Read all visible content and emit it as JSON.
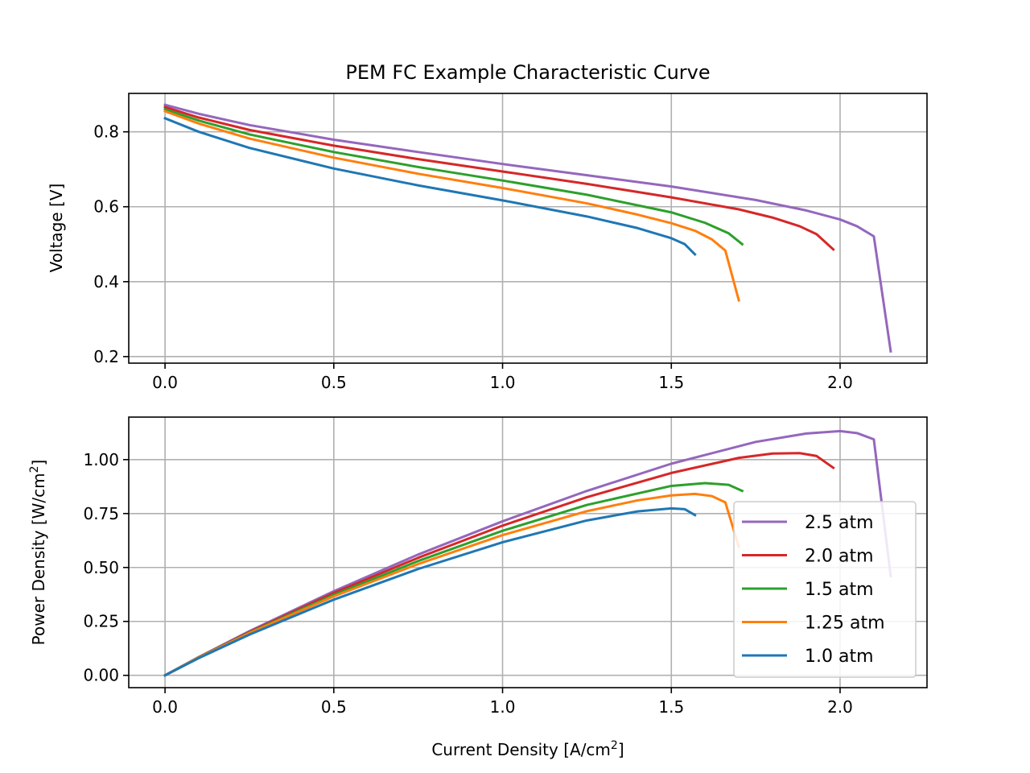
{
  "chart_data": [
    {
      "type": "line",
      "title": "PEM FC Example Characteristic Curve",
      "xlabel": "",
      "ylabel": "Voltage [V]",
      "xlim": [
        -0.1075,
        2.2575
      ],
      "ylim": [
        0.1825,
        0.9025
      ],
      "xticks": [
        0.0,
        0.5,
        1.0,
        1.5,
        2.0
      ],
      "xtick_labels": [
        "0.0",
        "0.5",
        "1.0",
        "1.5",
        "2.0"
      ],
      "yticks": [
        0.2,
        0.4,
        0.6,
        0.8
      ],
      "ytick_labels": [
        "0.2",
        "0.4",
        "0.6",
        "0.8"
      ],
      "grid": true,
      "series": [
        {
          "name": "2.5 atm",
          "color": "#9467bd",
          "x": [
            0.0,
            0.1,
            0.25,
            0.5,
            0.75,
            1.0,
            1.25,
            1.5,
            1.75,
            1.9,
            2.0,
            2.05,
            2.1,
            2.15
          ],
          "values": [
            0.872,
            0.848,
            0.818,
            0.779,
            0.746,
            0.714,
            0.684,
            0.654,
            0.618,
            0.59,
            0.566,
            0.548,
            0.521,
            0.214
          ]
        },
        {
          "name": "2.0 atm",
          "color": "#d62728",
          "x": [
            0.0,
            0.1,
            0.25,
            0.5,
            0.75,
            1.0,
            1.25,
            1.5,
            1.7,
            1.8,
            1.88,
            1.93,
            1.98
          ],
          "values": [
            0.866,
            0.838,
            0.805,
            0.763,
            0.727,
            0.694,
            0.661,
            0.625,
            0.593,
            0.571,
            0.548,
            0.527,
            0.486
          ]
        },
        {
          "name": "1.5 atm",
          "color": "#2ca02c",
          "x": [
            0.0,
            0.1,
            0.25,
            0.5,
            0.75,
            1.0,
            1.25,
            1.5,
            1.6,
            1.67,
            1.71
          ],
          "values": [
            0.86,
            0.83,
            0.793,
            0.746,
            0.706,
            0.67,
            0.632,
            0.585,
            0.557,
            0.529,
            0.5
          ]
        },
        {
          "name": "1.25 atm",
          "color": "#ff7f0e",
          "x": [
            0.0,
            0.1,
            0.25,
            0.5,
            0.75,
            1.0,
            1.25,
            1.4,
            1.5,
            1.57,
            1.62,
            1.66,
            1.7
          ],
          "values": [
            0.855,
            0.822,
            0.782,
            0.731,
            0.688,
            0.65,
            0.609,
            0.579,
            0.556,
            0.536,
            0.513,
            0.483,
            0.35
          ]
        },
        {
          "name": "1.0 atm",
          "color": "#1f77b4",
          "x": [
            0.0,
            0.1,
            0.25,
            0.5,
            0.75,
            1.0,
            1.25,
            1.4,
            1.5,
            1.54,
            1.57
          ],
          "values": [
            0.836,
            0.8,
            0.757,
            0.702,
            0.657,
            0.617,
            0.574,
            0.543,
            0.516,
            0.5,
            0.473
          ]
        }
      ]
    },
    {
      "type": "line",
      "title": "",
      "xlabel_main": "Current Density [A/cm",
      "xlabel_sup": "2",
      "xlabel_end": "]",
      "ylabel_main": "Power Density [W/cm",
      "ylabel_sup": "2",
      "ylabel_end": "]",
      "xlim": [
        -0.1075,
        2.2575
      ],
      "ylim": [
        -0.057,
        1.197
      ],
      "xticks": [
        0.0,
        0.5,
        1.0,
        1.5,
        2.0
      ],
      "xtick_labels": [
        "0.0",
        "0.5",
        "1.0",
        "1.5",
        "2.0"
      ],
      "yticks": [
        0.0,
        0.25,
        0.5,
        0.75,
        1.0
      ],
      "ytick_labels": [
        "0.00",
        "0.25",
        "0.50",
        "0.75",
        "1.00"
      ],
      "grid": true,
      "legend_position": "lower-right",
      "series": [
        {
          "name": "2.5 atm",
          "color": "#9467bd",
          "x": [
            0.0,
            0.1,
            0.25,
            0.5,
            0.75,
            1.0,
            1.25,
            1.5,
            1.75,
            1.9,
            2.0,
            2.05,
            2.1,
            2.15
          ],
          "values": [
            0.0,
            0.085,
            0.205,
            0.39,
            0.56,
            0.714,
            0.855,
            0.981,
            1.082,
            1.121,
            1.132,
            1.123,
            1.094,
            0.46
          ]
        },
        {
          "name": "2.0 atm",
          "color": "#d62728",
          "x": [
            0.0,
            0.1,
            0.25,
            0.5,
            0.75,
            1.0,
            1.25,
            1.5,
            1.7,
            1.8,
            1.88,
            1.93,
            1.98
          ],
          "values": [
            0.0,
            0.084,
            0.201,
            0.382,
            0.545,
            0.694,
            0.826,
            0.938,
            1.008,
            1.028,
            1.03,
            1.017,
            0.962
          ]
        },
        {
          "name": "1.5 atm",
          "color": "#2ca02c",
          "x": [
            0.0,
            0.1,
            0.25,
            0.5,
            0.75,
            1.0,
            1.25,
            1.5,
            1.6,
            1.67,
            1.71
          ],
          "values": [
            0.0,
            0.083,
            0.198,
            0.373,
            0.53,
            0.67,
            0.79,
            0.878,
            0.891,
            0.883,
            0.855
          ]
        },
        {
          "name": "1.25 atm",
          "color": "#ff7f0e",
          "x": [
            0.0,
            0.1,
            0.25,
            0.5,
            0.75,
            1.0,
            1.25,
            1.4,
            1.5,
            1.57,
            1.62,
            1.66,
            1.7
          ],
          "values": [
            0.0,
            0.082,
            0.196,
            0.366,
            0.516,
            0.65,
            0.761,
            0.811,
            0.834,
            0.841,
            0.831,
            0.802,
            0.595
          ]
        },
        {
          "name": "1.0 atm",
          "color": "#1f77b4",
          "x": [
            0.0,
            0.1,
            0.25,
            0.5,
            0.75,
            1.0,
            1.25,
            1.4,
            1.5,
            1.54,
            1.57
          ],
          "values": [
            0.0,
            0.08,
            0.189,
            0.351,
            0.493,
            0.617,
            0.718,
            0.76,
            0.774,
            0.77,
            0.743
          ]
        }
      ]
    }
  ]
}
